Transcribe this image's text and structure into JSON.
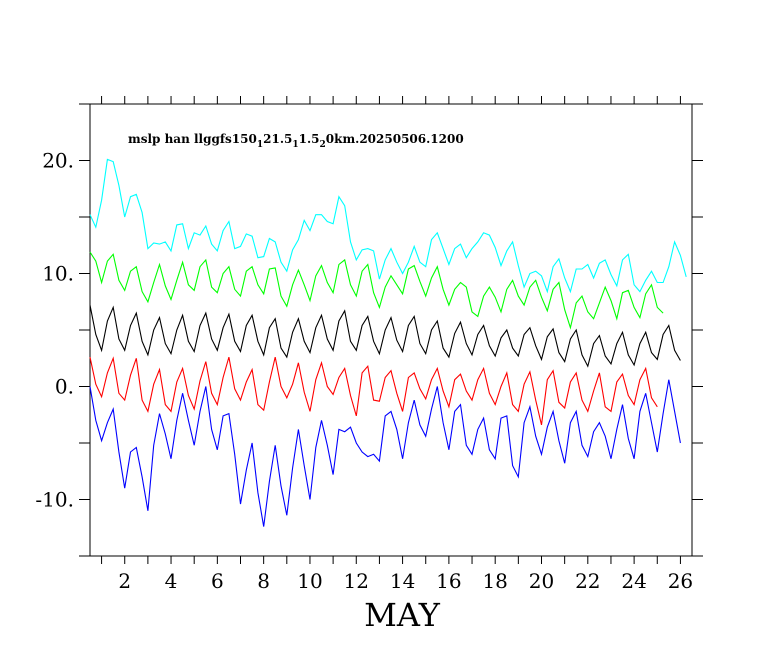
{
  "chart_data": {
    "type": "line",
    "title": "mslp han llggfs150",
    "title_sub1": "1",
    "title_mid1": "21.5",
    "title_sub2": "1",
    "title_mid2": "1.5",
    "title_sub3": "2",
    "title_end": "0km.20250506.1200",
    "xlabel": "MAY",
    "ylabel": "",
    "xlim": [
      0.5,
      26.5
    ],
    "ylim": [
      -15,
      25
    ],
    "x_ticks": [
      "2",
      "4",
      "6",
      "8",
      "10",
      "12",
      "14",
      "16",
      "18",
      "20",
      "22",
      "24",
      "26"
    ],
    "y_ticks": [
      "20.",
      "10.",
      "0.",
      "-10."
    ],
    "x_start": 0.5,
    "x_step": 0.25,
    "series": [
      {
        "color": "#00ffff",
        "values": [
          15.2,
          14.1,
          16.5,
          20.1,
          19.9,
          17.8,
          15.0,
          16.8,
          17.0,
          15.4,
          12.2,
          12.7,
          12.6,
          12.8,
          12.0,
          14.3,
          14.4,
          12.2,
          13.6,
          13.4,
          14.2,
          12.6,
          12.0,
          13.8,
          14.6,
          12.2,
          12.4,
          13.5,
          13.3,
          11.4,
          11.5,
          13.1,
          12.8,
          11.0,
          10.2,
          12.1,
          13.0,
          14.7,
          13.8,
          15.2,
          15.2,
          14.6,
          14.4,
          16.8,
          16.0,
          12.8,
          11.2,
          12.1,
          12.2,
          12.0,
          9.5,
          11.2,
          12.2,
          11.0,
          10.0,
          11.0,
          12.4,
          11.0,
          10.6,
          13.0,
          13.6,
          12.2,
          10.8,
          12.2,
          12.6,
          11.4,
          12.2,
          12.8,
          13.6,
          13.4,
          12.3,
          10.7,
          12.0,
          12.8,
          10.7,
          8.8,
          10.0,
          10.2,
          9.8,
          8.4,
          10.6,
          11.3,
          9.6,
          8.4,
          10.4,
          10.4,
          10.8,
          9.6,
          10.9,
          11.2,
          9.9,
          8.9,
          11.2,
          11.7,
          9.0,
          8.4,
          9.4,
          10.2,
          9.2,
          9.2,
          10.6,
          12.8,
          11.6,
          9.7
        ]
      },
      {
        "color": "#00ff00",
        "values": [
          11.9,
          11.1,
          9.2,
          11.1,
          11.7,
          9.4,
          8.5,
          10.2,
          10.6,
          8.4,
          7.5,
          9.2,
          10.8,
          8.9,
          7.7,
          9.4,
          11.0,
          9.0,
          8.5,
          10.6,
          11.2,
          8.8,
          8.3,
          10.0,
          10.6,
          8.6,
          8.0,
          10.2,
          10.6,
          9.0,
          8.2,
          10.4,
          10.5,
          8.0,
          7.1,
          9.0,
          10.3,
          9.0,
          7.6,
          9.8,
          10.7,
          9.2,
          8.3,
          10.8,
          11.2,
          9.0,
          8.0,
          10.2,
          10.8,
          8.3,
          7.0,
          8.8,
          9.8,
          9.0,
          8.2,
          10.4,
          10.7,
          9.3,
          8.0,
          9.6,
          10.6,
          8.6,
          7.2,
          8.6,
          9.2,
          8.8,
          6.6,
          6.2,
          8.0,
          8.8,
          7.9,
          6.6,
          8.6,
          9.4,
          8.0,
          7.2,
          8.8,
          9.4,
          7.9,
          6.7,
          8.6,
          9.2,
          6.8,
          5.2,
          7.4,
          8.0,
          6.6,
          6.0,
          7.4,
          8.8,
          7.6,
          6.0,
          8.3,
          8.5,
          7.0,
          6.1,
          8.2,
          9.0,
          7.0,
          6.5
        ]
      },
      {
        "color": "#000000",
        "values": [
          7.2,
          4.6,
          3.2,
          5.8,
          7.0,
          4.2,
          3.2,
          5.4,
          6.5,
          4.0,
          2.8,
          5.0,
          6.1,
          3.8,
          2.9,
          5.0,
          6.3,
          4.0,
          3.1,
          5.4,
          6.5,
          4.2,
          3.2,
          5.2,
          6.4,
          4.0,
          3.1,
          5.4,
          6.3,
          4.0,
          2.8,
          5.2,
          6.0,
          3.4,
          2.6,
          4.8,
          6.0,
          4.0,
          3.0,
          5.2,
          6.3,
          4.2,
          3.2,
          5.8,
          6.7,
          4.0,
          3.2,
          5.4,
          6.2,
          4.0,
          2.9,
          5.0,
          6.1,
          4.1,
          3.1,
          5.4,
          6.2,
          3.8,
          2.9,
          5.0,
          5.8,
          3.4,
          2.6,
          4.7,
          5.7,
          3.8,
          2.8,
          4.6,
          5.4,
          3.6,
          2.7,
          4.3,
          5.0,
          3.4,
          2.7,
          4.6,
          5.2,
          3.6,
          2.4,
          4.4,
          5.1,
          3.0,
          2.2,
          4.2,
          5.0,
          2.8,
          1.8,
          3.8,
          4.5,
          2.7,
          2.0,
          3.8,
          4.8,
          2.8,
          1.9,
          3.8,
          4.8,
          3.0,
          2.4,
          4.6,
          5.4,
          3.2,
          2.3
        ]
      },
      {
        "color": "#ff0000",
        "values": [
          2.6,
          0.2,
          -0.9,
          1.2,
          2.5,
          -0.6,
          -1.2,
          1.0,
          2.5,
          -1.2,
          -2.2,
          0.2,
          1.5,
          -1.6,
          -2.2,
          0.4,
          1.6,
          -0.8,
          -2.0,
          0.5,
          2.2,
          -0.6,
          -1.6,
          0.8,
          2.6,
          -0.2,
          -1.2,
          0.4,
          1.5,
          -1.6,
          -2.1,
          0.4,
          2.6,
          0.0,
          -1.0,
          0.2,
          2.1,
          -0.5,
          -2.2,
          0.6,
          2.1,
          0.0,
          -0.7,
          0.8,
          1.6,
          -0.8,
          -2.6,
          1.2,
          1.8,
          -1.2,
          -1.3,
          0.8,
          1.4,
          -0.6,
          -2.2,
          0.8,
          1.2,
          -0.2,
          -1.1,
          0.6,
          1.6,
          -0.4,
          -1.8,
          0.6,
          1.1,
          -0.4,
          -1.2,
          0.6,
          1.6,
          -0.6,
          -1.6,
          0.0,
          1.2,
          -1.6,
          -2.2,
          0.2,
          1.3,
          -1.2,
          -3.4,
          0.6,
          1.4,
          -1.4,
          -1.9,
          0.4,
          1.2,
          -1.2,
          -2.2,
          -0.4,
          1.2,
          -1.8,
          -2.2,
          0.4,
          1.1,
          -0.8,
          -1.6,
          0.6,
          1.6,
          -1.0,
          -1.8
        ]
      },
      {
        "color": "#0000ff",
        "values": [
          0.0,
          -3.0,
          -4.8,
          -3.2,
          -2.0,
          -5.8,
          -9.0,
          -5.8,
          -5.4,
          -8.0,
          -11.0,
          -5.2,
          -2.4,
          -4.2,
          -6.4,
          -3.0,
          -0.6,
          -3.0,
          -5.2,
          -2.2,
          0.0,
          -3.8,
          -5.6,
          -2.6,
          -2.4,
          -6.0,
          -10.4,
          -7.4,
          -5.0,
          -9.4,
          -12.4,
          -8.4,
          -5.2,
          -8.8,
          -11.4,
          -7.2,
          -3.8,
          -7.0,
          -10.0,
          -5.4,
          -3.0,
          -5.2,
          -7.8,
          -3.8,
          -4.0,
          -3.6,
          -5.0,
          -5.8,
          -6.2,
          -6.0,
          -6.6,
          -2.6,
          -2.2,
          -3.8,
          -6.4,
          -3.2,
          -1.2,
          -3.4,
          -4.4,
          -2.0,
          0.0,
          -3.2,
          -5.6,
          -2.2,
          -1.6,
          -5.2,
          -6.0,
          -3.8,
          -2.8,
          -5.6,
          -6.4,
          -2.8,
          -2.6,
          -7.0,
          -8.0,
          -3.2,
          -1.8,
          -4.4,
          -6.0,
          -3.6,
          -2.2,
          -4.8,
          -6.8,
          -3.2,
          -2.2,
          -5.2,
          -6.2,
          -4.0,
          -3.2,
          -4.4,
          -6.4,
          -3.8,
          -1.6,
          -4.6,
          -6.4,
          -2.2,
          -0.6,
          -3.2,
          -5.8,
          -2.4,
          0.6,
          -2.2,
          -5.0
        ]
      }
    ]
  }
}
